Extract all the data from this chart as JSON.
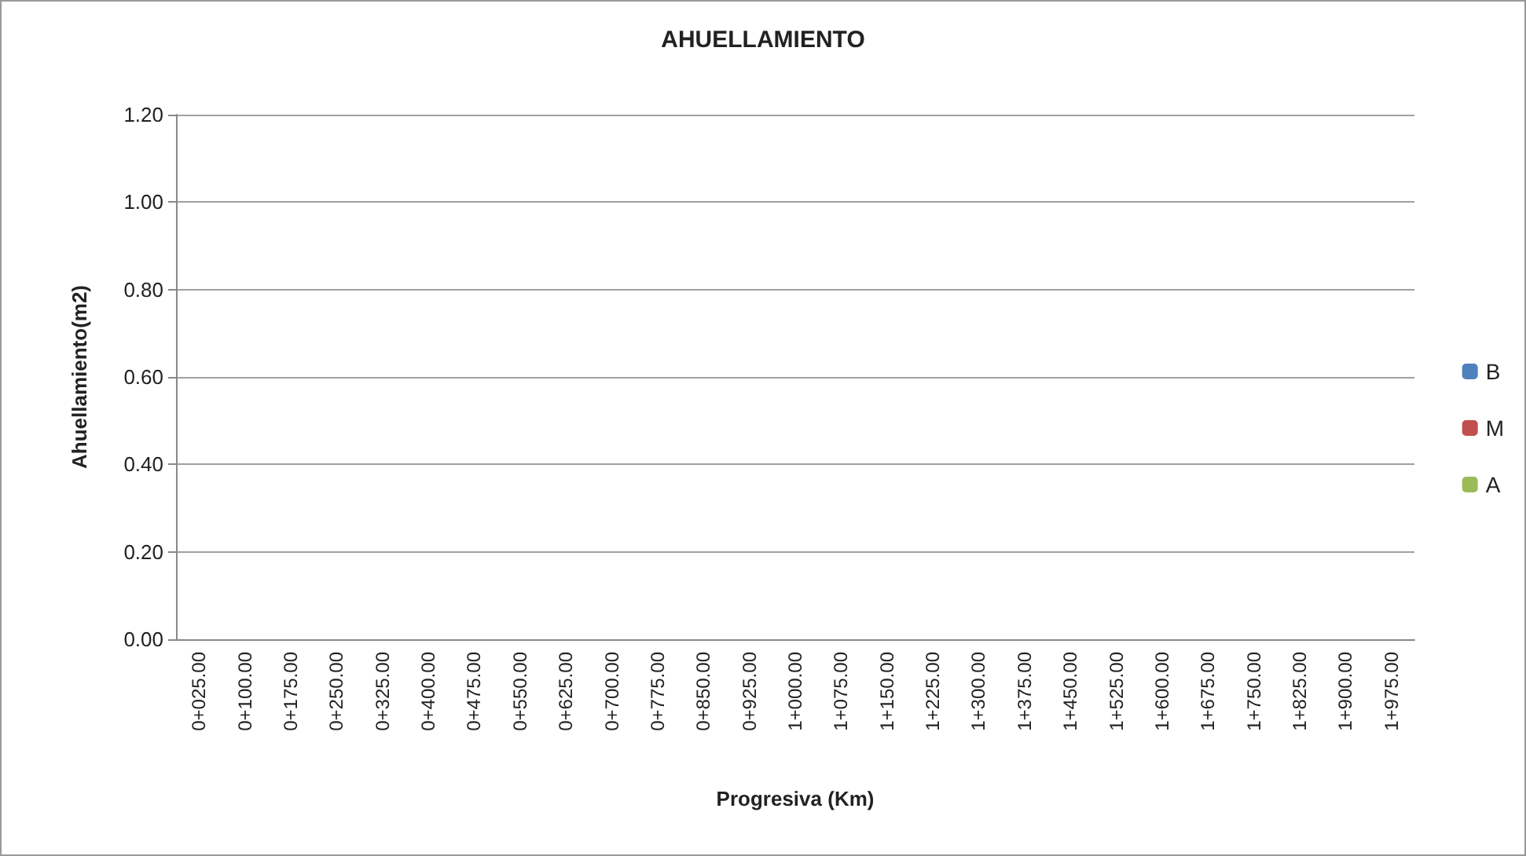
{
  "chart_data": {
    "type": "bar",
    "title": "AHUELLAMIENTO",
    "xlabel": "Progresiva (Km)",
    "ylabel": "Ahuellamiento(m2)",
    "categories": [
      "0+025.00",
      "0+100.00",
      "0+175.00",
      "0+250.00",
      "0+325.00",
      "0+400.00",
      "0+475.00",
      "0+550.00",
      "0+625.00",
      "0+700.00",
      "0+775.00",
      "0+850.00",
      "0+925.00",
      "1+000.00",
      "1+075.00",
      "1+150.00",
      "1+225.00",
      "1+300.00",
      "1+375.00",
      "1+450.00",
      "1+525.00",
      "1+600.00",
      "1+675.00",
      "1+750.00",
      "1+825.00",
      "1+900.00",
      "1+975.00"
    ],
    "series": [
      {
        "name": "B",
        "color": "#4f81bd",
        "values": [
          0,
          0,
          0,
          0,
          0,
          0,
          0,
          0,
          0,
          0,
          0,
          0,
          0,
          0,
          0,
          0,
          0,
          0,
          0,
          0,
          0,
          0,
          0,
          0,
          0,
          0,
          0
        ]
      },
      {
        "name": "M",
        "color": "#c0504d",
        "values": [
          0,
          0,
          0,
          0,
          0,
          0,
          0,
          0,
          0,
          0,
          0,
          0,
          0,
          0,
          0,
          0,
          0,
          0,
          0,
          0,
          0,
          0,
          0,
          0,
          0,
          0,
          0
        ]
      },
      {
        "name": "A",
        "color": "#9bbb59",
        "values": [
          0,
          0,
          0,
          0,
          0,
          0,
          0,
          0,
          0,
          0,
          0,
          0,
          0,
          0,
          0,
          0,
          0,
          0,
          0,
          0,
          0,
          0,
          0,
          0,
          0,
          0,
          0
        ]
      }
    ],
    "ylim": [
      0,
      1.2
    ],
    "yticks": [
      {
        "value": 0,
        "label": "0.00"
      },
      {
        "value": 0.2,
        "label": "0.20"
      },
      {
        "value": 0.4,
        "label": "0.40"
      },
      {
        "value": 0.6,
        "label": "0.60"
      },
      {
        "value": 0.8,
        "label": "0.80"
      },
      {
        "value": 1,
        "label": "1.00"
      },
      {
        "value": 1.2,
        "label": "1.20"
      }
    ],
    "grid": "y",
    "legend": "right"
  }
}
